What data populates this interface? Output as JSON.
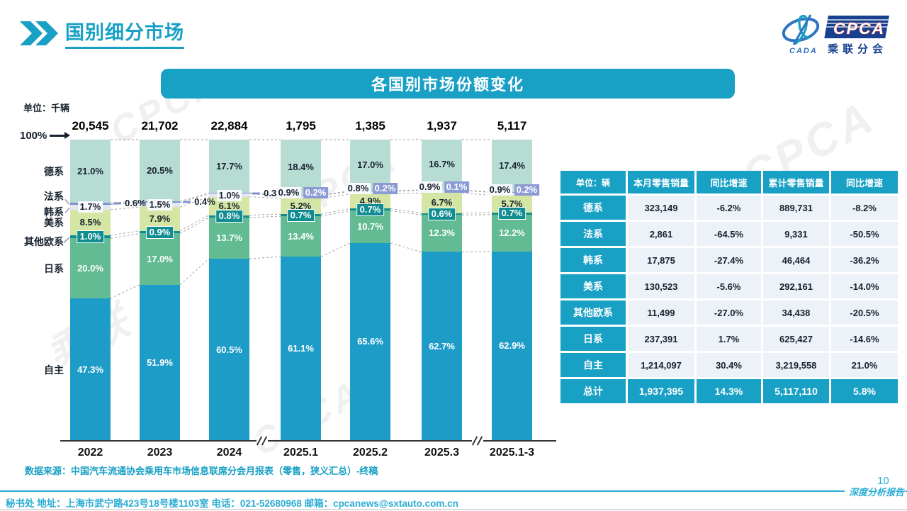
{
  "page": {
    "title": "国别细分市场",
    "page_number": "10",
    "report_label": "深度分析报告",
    "footer": "秘书处  地址：上海市武宁路423号18号楼1103室 电话：021-52680968  邮箱：cpcanews@sxtauto.com.cn",
    "source_note": "数据来源：中国汽车流通协会乘用车市场信息联席分会月报表（零售，狭义汇总）-终稿"
  },
  "logo": {
    "mark_text": "CADA",
    "name": "CPCA",
    "subtitle": "乘联分会"
  },
  "chart": {
    "banner_title": "各国别市场份额变化",
    "unit_label": "单位：千辆",
    "axis_100": "100%"
  },
  "chart_data": {
    "type": "bar",
    "stacked_percent": true,
    "title": "各国别市场份额变化",
    "ylabel": "单位：千辆",
    "categories": [
      "2022",
      "2023",
      "2024",
      "2025.1",
      "2025.2",
      "2025.3",
      "2025.1-3"
    ],
    "totals": [
      "20,545",
      "21,702",
      "22,884",
      "1,795",
      "1,385",
      "1,937",
      "5,117"
    ],
    "axis_breaks_after": [
      "2024",
      "2025.3"
    ],
    "series": [
      {
        "name": "德系",
        "key": "dexi",
        "color": "#B7DCD4",
        "label_style": "dark",
        "values": [
          21.0,
          20.5,
          17.7,
          18.4,
          17.0,
          16.7,
          17.4
        ]
      },
      {
        "name": "法系",
        "key": "faxi",
        "color": "#8193CE",
        "label_style": "french",
        "values": [
          0.6,
          0.4,
          0.3,
          0.2,
          0.2,
          0.1,
          0.2
        ]
      },
      {
        "name": "韩系",
        "key": "hanxi",
        "color": "#E4E7F3",
        "label_style": "badge-light",
        "values": [
          1.7,
          1.5,
          1.0,
          0.9,
          0.8,
          0.9,
          0.9
        ]
      },
      {
        "name": "美系",
        "key": "meixi",
        "color": "#D4E5A4",
        "label_style": "dark",
        "values": [
          8.5,
          7.9,
          6.1,
          5.2,
          4.9,
          6.7,
          5.7
        ]
      },
      {
        "name": "其他欧系",
        "key": "qitaouxi",
        "color": "#0F8D90",
        "label_style": "badge-teal",
        "values": [
          1.0,
          0.9,
          0.8,
          0.7,
          0.7,
          0.6,
          0.7
        ]
      },
      {
        "name": "日系",
        "key": "rixi",
        "color": "#63BB93",
        "label_style": "white",
        "values": [
          20.0,
          17.0,
          13.7,
          13.4,
          10.7,
          12.3,
          12.2
        ]
      },
      {
        "name": "自主",
        "key": "zizhu",
        "color": "#1E9CC8",
        "label_style": "white",
        "values": [
          47.3,
          51.9,
          60.5,
          61.1,
          65.6,
          62.7,
          62.9
        ]
      }
    ]
  },
  "table": {
    "corner": "单位：辆",
    "headers": [
      "本月零售销量",
      "同比增速",
      "累计零售销量",
      "同比增速"
    ],
    "rows": [
      {
        "name": "德系",
        "key": "dexi",
        "cells": [
          "323,149",
          "-6.2%",
          "889,731",
          "-8.2%"
        ]
      },
      {
        "name": "法系",
        "key": "faxi",
        "cells": [
          "2,861",
          "-64.5%",
          "9,331",
          "-50.5%"
        ]
      },
      {
        "name": "韩系",
        "key": "hanxi",
        "cells": [
          "17,875",
          "-27.4%",
          "46,464",
          "-36.2%"
        ]
      },
      {
        "name": "美系",
        "key": "meixi",
        "cells": [
          "130,523",
          "-5.6%",
          "292,161",
          "-14.0%"
        ]
      },
      {
        "name": "其他欧系",
        "key": "qitaouxi",
        "cells": [
          "11,499",
          "-27.0%",
          "34,438",
          "-20.5%"
        ]
      },
      {
        "name": "日系",
        "key": "rixi",
        "cells": [
          "237,391",
          "1.7%",
          "625,427",
          "-14.6%"
        ]
      },
      {
        "name": "自主",
        "key": "zizhu",
        "cells": [
          "1,214,097",
          "30.4%",
          "3,219,558",
          "21.0%"
        ]
      }
    ],
    "total": {
      "name": "总计",
      "cells": [
        "1,937,395",
        "14.3%",
        "5,117,110",
        "5.8%"
      ]
    }
  },
  "colors": {
    "accent": "#18A0C5",
    "table_cell": "#EDF1F8",
    "footer": "#2BACD3"
  },
  "decor": {
    "watermark": "CPCA 乘联"
  }
}
